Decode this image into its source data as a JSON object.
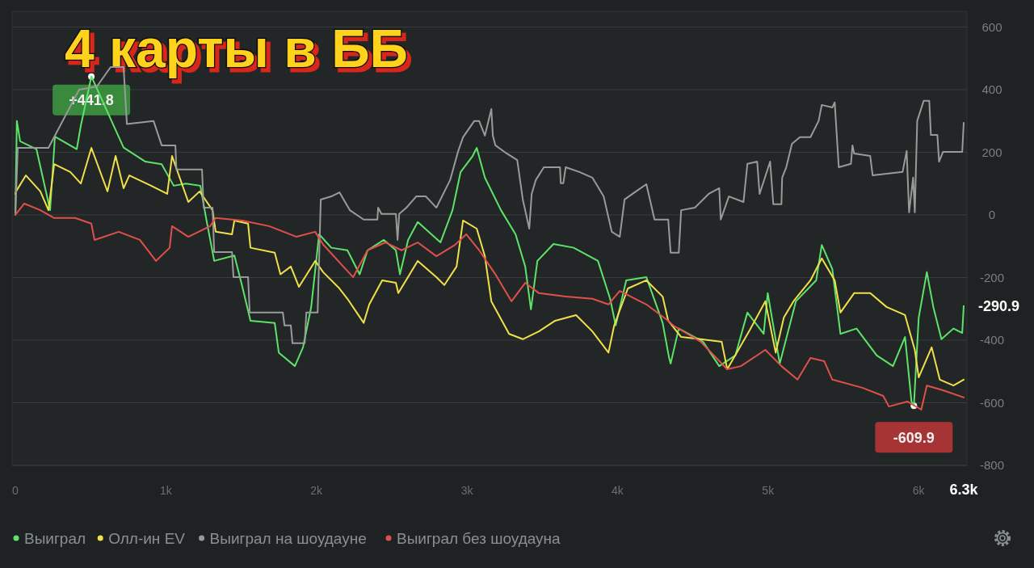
{
  "chart_data": {
    "type": "line",
    "title": "4 карты в ББ",
    "xlim": [
      0,
      6300
    ],
    "ylim": [
      -800,
      650
    ],
    "xticks": [
      0,
      {
        "value": 1000,
        "label": "1k"
      },
      {
        "value": 2000,
        "label": "2k"
      },
      {
        "value": 3000,
        "label": "3k"
      },
      {
        "value": 4000,
        "label": "4k"
      },
      {
        "value": 5000,
        "label": "5k"
      },
      {
        "value": 6000,
        "label": "6k"
      },
      {
        "value": 6300,
        "label": "6.3k"
      }
    ],
    "yticks": [
      -800,
      -600,
      -400,
      -200,
      0,
      200,
      400,
      600
    ],
    "grid": "y",
    "legend": "bottom",
    "marker": "none",
    "line_style": "solid",
    "annotations": [
      {
        "text": "+441.8",
        "x": 505,
        "y": 441.8
      },
      {
        "text": "-609.9",
        "x": 5969,
        "y": -609.9
      },
      {
        "text": "-290.9",
        "x": 6300,
        "y": -290.9
      }
    ],
    "series": [
      {
        "name": "Выиграл",
        "color": "#5ee36a",
        "x": [
          0,
          10,
          32,
          140,
          231,
          263,
          408,
          435,
          505,
          719,
          864,
          972,
          1052,
          1133,
          1229,
          1267,
          1321,
          1455,
          1508,
          1562,
          1723,
          1750,
          1857,
          1911,
          1965,
          2018,
          2099,
          2206,
          2287,
          2340,
          2448,
          2528,
          2555,
          2609,
          2673,
          2824,
          2904,
          2958,
          3038,
          3065,
          3119,
          3226,
          3323,
          3387,
          3425,
          3468,
          3575,
          3709,
          3870,
          3951,
          3988,
          4058,
          4192,
          4300,
          4343,
          4353,
          4407,
          4568,
          4676,
          4783,
          4863,
          4971,
          4998,
          5078,
          5185,
          5320,
          5357,
          5427,
          5481,
          5588,
          5722,
          5830,
          5910,
          5953,
          5969,
          6001,
          6055,
          6098,
          6152,
          6232,
          6290,
          6300
        ],
        "values": [
          0,
          300,
          235,
          210,
          15,
          250,
          210,
          285,
          441.8,
          215,
          170,
          162,
          93,
          100,
          93,
          -10,
          -147,
          -130,
          -230,
          -338,
          -345,
          -440,
          -483,
          -423,
          -295,
          -62,
          -105,
          -113,
          -190,
          -113,
          -80,
          -113,
          -190,
          -80,
          -23,
          -88,
          15,
          137,
          188,
          214,
          119,
          15,
          -62,
          -165,
          -302,
          -147,
          -93,
          -105,
          -147,
          -268,
          -353,
          -209,
          -199,
          -345,
          -457,
          -475,
          -363,
          -405,
          -483,
          -449,
          -312,
          -380,
          -250,
          -475,
          -276,
          -209,
          -96,
          -173,
          -380,
          -363,
          -449,
          -483,
          -390,
          -596,
          -609.9,
          -328,
          -183,
          -294,
          -397,
          -363,
          -377,
          -290.9
        ]
      },
      {
        "name": "Олл-ин EV",
        "color": "#f0e04a",
        "x": [
          0,
          5,
          70,
          166,
          220,
          258,
          365,
          435,
          505,
          612,
          666,
          719,
          757,
          902,
          1009,
          1041,
          1149,
          1224,
          1310,
          1331,
          1439,
          1455,
          1546,
          1562,
          1723,
          1761,
          1830,
          1884,
          1992,
          2045,
          2153,
          2206,
          2314,
          2351,
          2437,
          2528,
          2544,
          2673,
          2797,
          2850,
          2931,
          2974,
          3065,
          3119,
          3162,
          3280,
          3371,
          3478,
          3586,
          3725,
          3833,
          3940,
          3978,
          4069,
          4192,
          4300,
          4337,
          4423,
          4552,
          4692,
          4729,
          4874,
          4982,
          5051,
          5105,
          5169,
          5282,
          5357,
          5443,
          5481,
          5572,
          5679,
          5787,
          5910,
          5975,
          6001,
          6087,
          6141,
          6232,
          6300
        ],
        "values": [
          67,
          75,
          126,
          75,
          15,
          162,
          137,
          100,
          214,
          75,
          188,
          85,
          126,
          93,
          67,
          188,
          41,
          75,
          15,
          -54,
          -62,
          -18,
          -28,
          -105,
          -121,
          -190,
          -165,
          -230,
          -147,
          -183,
          -235,
          -268,
          -345,
          -286,
          -209,
          -217,
          -250,
          -147,
          -199,
          -224,
          -165,
          -18,
          -44,
          -132,
          -276,
          -380,
          -397,
          -372,
          -338,
          -320,
          -372,
          -440,
          -353,
          -235,
          -209,
          -261,
          -338,
          -390,
          -397,
          -405,
          -493,
          -372,
          -276,
          -440,
          -328,
          -276,
          -209,
          -139,
          -209,
          -312,
          -250,
          -250,
          -294,
          -320,
          -431,
          -519,
          -423,
          -526,
          -545,
          -526
        ]
      },
      {
        "name": "Выиграл на шоудауне",
        "color": "#9a9a9a",
        "x": [
          0,
          16,
          220,
          424,
          542,
          633,
          719,
          741,
          918,
          972,
          1063,
          1070,
          1240,
          1251,
          1310,
          1321,
          1439,
          1449,
          1546,
          1557,
          1777,
          1788,
          1830,
          1841,
          1922,
          1933,
          2008,
          2029,
          2099,
          2153,
          2222,
          2314,
          2405,
          2410,
          2432,
          2528,
          2539,
          2550,
          2598,
          2663,
          2727,
          2797,
          2888,
          2942,
          2974,
          3049,
          3081,
          3119,
          3162,
          3172,
          3189,
          3264,
          3334,
          3371,
          3414,
          3430,
          3457,
          3511,
          3618,
          3623,
          3640,
          3656,
          3747,
          3833,
          3908,
          3962,
          4015,
          4047,
          4123,
          4192,
          4246,
          4337,
          4353,
          4407,
          4423,
          4514,
          4606,
          4676,
          4686,
          4740,
          4837,
          4863,
          4928,
          4944,
          5014,
          5035,
          5089,
          5094,
          5121,
          5159,
          5212,
          5282,
          5336,
          5357,
          5427,
          5443,
          5470,
          5551,
          5561,
          5572,
          5679,
          5695,
          5894,
          5921,
          5937,
          5964,
          5975,
          5991,
          6034,
          6071,
          6082,
          6125,
          6136,
          6162,
          6290,
          6300
        ],
        "values": [
          0,
          214,
          214,
          400,
          410,
          472,
          472,
          290,
          300,
          222,
          222,
          145,
          145,
          23,
          23,
          -119,
          -119,
          -199,
          -199,
          -312,
          -312,
          -353,
          -353,
          -410,
          -410,
          -312,
          -312,
          49,
          59,
          72,
          15,
          -15,
          -15,
          23,
          3,
          3,
          -80,
          3,
          23,
          59,
          59,
          23,
          111,
          204,
          248,
          300,
          300,
          253,
          338,
          253,
          222,
          196,
          175,
          49,
          -44,
          67,
          111,
          152,
          152,
          101,
          101,
          152,
          137,
          119,
          59,
          -54,
          -70,
          49,
          75,
          98,
          -15,
          -15,
          -121,
          -121,
          15,
          23,
          67,
          85,
          -15,
          59,
          41,
          163,
          170,
          67,
          170,
          34,
          34,
          119,
          152,
          227,
          248,
          248,
          300,
          351,
          343,
          359,
          152,
          163,
          222,
          196,
          188,
          126,
          137,
          204,
          8,
          119,
          8,
          300,
          364,
          364,
          255,
          255,
          170,
          201,
          201,
          294
        ]
      },
      {
        "name": "Выиграл без шоудауна",
        "color": "#e0504a",
        "x": [
          0,
          59,
          166,
          258,
          397,
          505,
          526,
          687,
          827,
          934,
          1025,
          1041,
          1149,
          1294,
          1331,
          1508,
          1686,
          1868,
          1992,
          2045,
          2244,
          2340,
          2459,
          2566,
          2673,
          2797,
          2920,
          2995,
          3081,
          3189,
          3296,
          3387,
          3478,
          3656,
          3833,
          3940,
          4015,
          4192,
          4337,
          4370,
          4552,
          4729,
          4820,
          4982,
          5089,
          5196,
          5282,
          5373,
          5427,
          5626,
          5765,
          5803,
          5926,
          6018,
          6055,
          6162,
          6300
        ],
        "values": [
          0,
          36,
          15,
          -10,
          -10,
          -28,
          -80,
          -54,
          -80,
          -147,
          -105,
          -36,
          -70,
          -36,
          -10,
          -18,
          -36,
          -70,
          -54,
          -95,
          -199,
          -113,
          -88,
          -113,
          -88,
          -132,
          -96,
          -62,
          -113,
          -190,
          -276,
          -217,
          -250,
          -261,
          -268,
          -286,
          -243,
          -286,
          -338,
          -353,
          -405,
          -493,
          -483,
          -431,
          -483,
          -526,
          -457,
          -467,
          -526,
          -552,
          -578,
          -612,
          -596,
          -622,
          -545,
          -560,
          -583
        ]
      }
    ]
  }
}
